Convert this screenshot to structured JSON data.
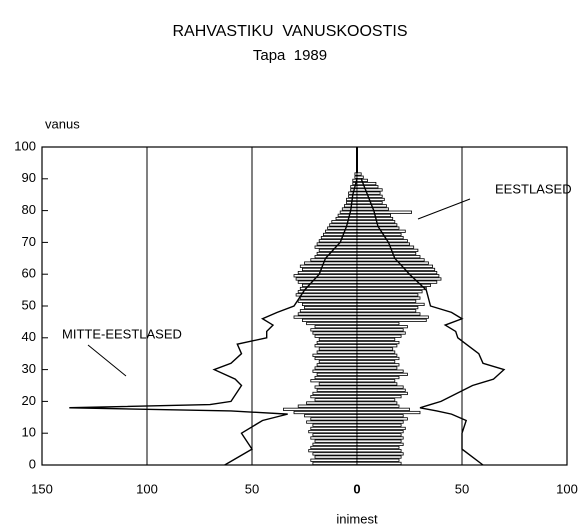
{
  "chart_data": {
    "type": "population-pyramid",
    "title": "RAHVASTIKU  VANUSKOOSTIS",
    "subtitle": "Tapa  1989",
    "ylabel": "vanus",
    "xlabel": "inimest",
    "xlim": [
      -150,
      100
    ],
    "ylim": [
      0,
      100
    ],
    "xticks": [
      {
        "value": -150,
        "label": "150"
      },
      {
        "value": -100,
        "label": "100"
      },
      {
        "value": -50,
        "label": "50"
      },
      0,
      50,
      100
    ],
    "yticks": [
      0,
      10,
      20,
      30,
      40,
      50,
      60,
      70,
      80,
      90,
      100
    ],
    "grid": true,
    "series": [
      {
        "name": "EESTLASED",
        "style": "bars",
        "color": "#000000",
        "y": [
          0,
          1,
          2,
          3,
          4,
          5,
          6,
          7,
          8,
          9,
          10,
          11,
          12,
          13,
          14,
          15,
          16,
          17,
          18,
          19,
          20,
          21,
          22,
          23,
          24,
          25,
          26,
          27,
          28,
          29,
          30,
          31,
          32,
          33,
          34,
          35,
          36,
          37,
          38,
          39,
          40,
          41,
          42,
          43,
          44,
          45,
          46,
          47,
          48,
          49,
          50,
          51,
          52,
          53,
          54,
          55,
          56,
          57,
          58,
          59,
          60,
          61,
          62,
          63,
          64,
          65,
          66,
          67,
          68,
          69,
          70,
          71,
          72,
          73,
          74,
          75,
          76,
          77,
          78,
          79,
          80,
          81,
          82,
          83,
          84,
          85,
          86,
          87,
          88,
          89,
          90,
          91
        ],
        "left": [
          -21,
          -22,
          -20,
          -21,
          -23,
          -22,
          -21,
          -20,
          -22,
          -21,
          -23,
          -22,
          -21,
          -24,
          -22,
          -25,
          -30,
          -35,
          -28,
          -24,
          -20,
          -22,
          -21,
          -19,
          -20,
          -18,
          -22,
          -20,
          -19,
          -21,
          -20,
          -19,
          -18,
          -20,
          -21,
          -19,
          -18,
          -20,
          -19,
          -18,
          -20,
          -21,
          -22,
          -20,
          -24,
          -26,
          -30,
          -28,
          -27,
          -25,
          -26,
          -28,
          -27,
          -29,
          -28,
          -27,
          -26,
          -28,
          -29,
          -30,
          -28,
          -26,
          -27,
          -25,
          -22,
          -20,
          -19,
          -18,
          -20,
          -19,
          -18,
          -17,
          -16,
          -15,
          -14,
          -13,
          -12,
          -10,
          -9,
          -8,
          -7,
          -6,
          -5,
          -5,
          -4,
          -4,
          -3,
          -3,
          -2,
          -2,
          -1,
          -1
        ],
        "right": [
          21,
          20,
          21,
          22,
          21,
          20,
          22,
          21,
          22,
          21,
          22,
          23,
          21,
          22,
          24,
          22,
          30,
          25,
          20,
          19,
          18,
          21,
          24,
          23,
          22,
          19,
          18,
          20,
          24,
          22,
          19,
          20,
          18,
          20,
          19,
          18,
          17,
          19,
          20,
          18,
          21,
          23,
          22,
          24,
          20,
          33,
          34,
          30,
          28,
          29,
          32,
          28,
          30,
          29,
          31,
          33,
          35,
          38,
          40,
          39,
          38,
          37,
          36,
          34,
          32,
          30,
          28,
          29,
          27,
          25,
          24,
          22,
          21,
          23,
          20,
          19,
          18,
          17,
          16,
          26,
          15,
          14,
          12,
          13,
          12,
          11,
          12,
          10,
          9,
          5,
          3,
          2
        ]
      },
      {
        "name": "MITTE-EESTLASED",
        "style": "line",
        "color": "#000000",
        "y": [
          0,
          5,
          10,
          14,
          16,
          17,
          18,
          19,
          20,
          25,
          27,
          30,
          32,
          35,
          38,
          40,
          42,
          44,
          46,
          48,
          50,
          55,
          60,
          65,
          70,
          75,
          80,
          85,
          90
        ],
        "left": [
          -63,
          -50,
          -55,
          -45,
          -33,
          -60,
          -137,
          -70,
          -60,
          -55,
          -58,
          -68,
          -60,
          -55,
          -57,
          -43,
          -43,
          -40,
          -45,
          -38,
          -30,
          -25,
          -18,
          -15,
          -8,
          -5,
          -3,
          -2,
          0
        ],
        "right": [
          60,
          50,
          50,
          52,
          45,
          38,
          30,
          35,
          40,
          55,
          65,
          70,
          60,
          58,
          52,
          48,
          47,
          42,
          50,
          45,
          35,
          33,
          25,
          18,
          15,
          10,
          8,
          5,
          2
        ]
      }
    ]
  }
}
